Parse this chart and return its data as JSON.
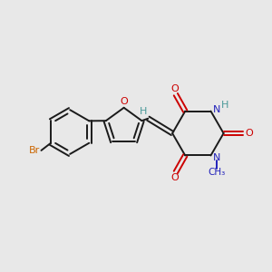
{
  "bg_color": "#e8e8e8",
  "bond_color": "#1a1a1a",
  "furan_O_color": "#cc0000",
  "N_color": "#2222bb",
  "Br_color": "#cc6600",
  "carbonyl_O_color": "#cc0000",
  "H_color": "#4a9999",
  "figsize": [
    3.0,
    3.0
  ],
  "dpi": 100,
  "xlim": [
    0,
    10
  ],
  "ylim": [
    0,
    10
  ]
}
